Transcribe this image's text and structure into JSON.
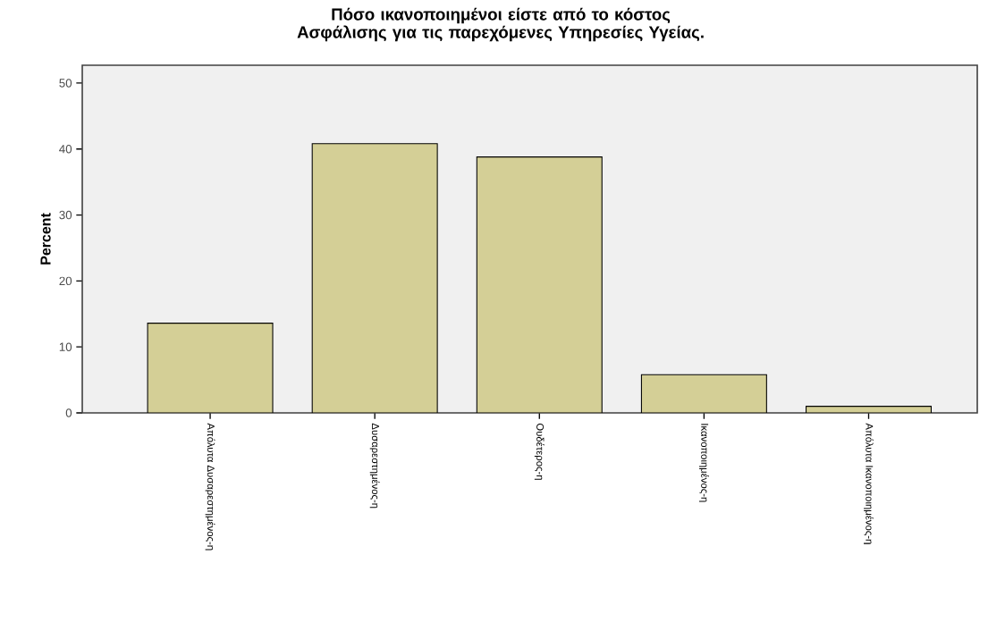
{
  "chart_data": {
    "type": "bar",
    "title": "Πόσο ικανοποιημένοι είστε  από το κόστος Ασφάλισης για τις παρεχόμενες Υπηρεσίες Υγείας.",
    "ylabel": "Percent",
    "categories": [
      "Απόλυτα Δυσαρεστημένος-η",
      "Δυσαρεστημένος-η",
      "Ουδέτερος-η",
      "Ικανοποιημένος-η",
      "Απόλυτα Ικανοποιημένος-η"
    ],
    "values": [
      13.6,
      40.8,
      38.8,
      5.8,
      1.0
    ],
    "color": "#d4cf96",
    "ylim": [
      0,
      52.7
    ],
    "yticks": [
      0,
      10,
      20,
      30,
      40,
      50
    ],
    "grid": false
  }
}
